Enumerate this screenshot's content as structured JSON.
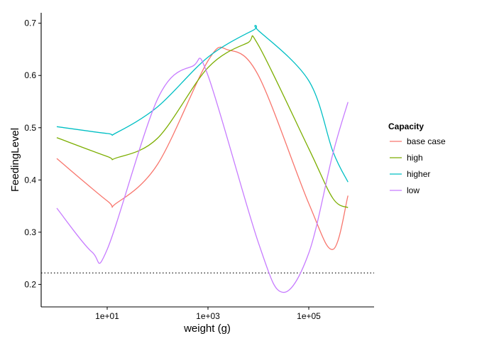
{
  "chart_data": {
    "type": "line",
    "xlabel": "weight (g)",
    "ylabel": "FeedingLevel",
    "xscale": "log10",
    "xlim": [
      1,
      1000000
    ],
    "ylim": [
      0.157,
      0.72
    ],
    "xticks": [
      {
        "value": 10,
        "label": "1e+01"
      },
      {
        "value": 1000,
        "label": "1e+03"
      },
      {
        "value": 100000,
        "label": "1e+05"
      }
    ],
    "yticks": [
      {
        "value": 0.2,
        "label": "0.2"
      },
      {
        "value": 0.3,
        "label": "0.3"
      },
      {
        "value": 0.4,
        "label": "0.4"
      },
      {
        "value": 0.5,
        "label": "0.5"
      },
      {
        "value": 0.6,
        "label": "0.6"
      },
      {
        "value": 0.7,
        "label": "0.7"
      }
    ],
    "grid": false,
    "legend": {
      "title": "Capacity",
      "position": "right"
    },
    "hline": {
      "y": 0.222,
      "style": "dotted",
      "color": "#000000"
    },
    "series": [
      {
        "name": "base case",
        "color": "#F8766D",
        "x": [
          1,
          10,
          15,
          100,
          1000,
          2500,
          10000,
          100000,
          300000,
          600000
        ],
        "y": [
          0.441,
          0.36,
          0.355,
          0.43,
          0.628,
          0.649,
          0.6,
          0.355,
          0.267,
          0.37
        ]
      },
      {
        "name": "high",
        "color": "#7CAE00",
        "x": [
          1,
          10,
          15,
          100,
          1000,
          6000,
          10000,
          100000,
          300000,
          600000
        ],
        "y": [
          0.481,
          0.445,
          0.442,
          0.48,
          0.615,
          0.662,
          0.658,
          0.46,
          0.365,
          0.347
        ]
      },
      {
        "name": "higher",
        "color": "#00BFC4",
        "x": [
          1,
          10,
          15,
          100,
          1000,
          8000,
          10000,
          100000,
          300000,
          600000
        ],
        "y": [
          0.502,
          0.489,
          0.49,
          0.54,
          0.635,
          0.687,
          0.686,
          0.59,
          0.455,
          0.396
        ]
      },
      {
        "name": "low",
        "color": "#C77CFF",
        "x": [
          1,
          5,
          10,
          100,
          500,
          1000,
          10000,
          30000,
          100000,
          300000,
          600000
        ],
        "y": [
          0.346,
          0.262,
          0.267,
          0.555,
          0.618,
          0.6,
          0.28,
          0.185,
          0.26,
          0.45,
          0.549
        ]
      }
    ]
  }
}
